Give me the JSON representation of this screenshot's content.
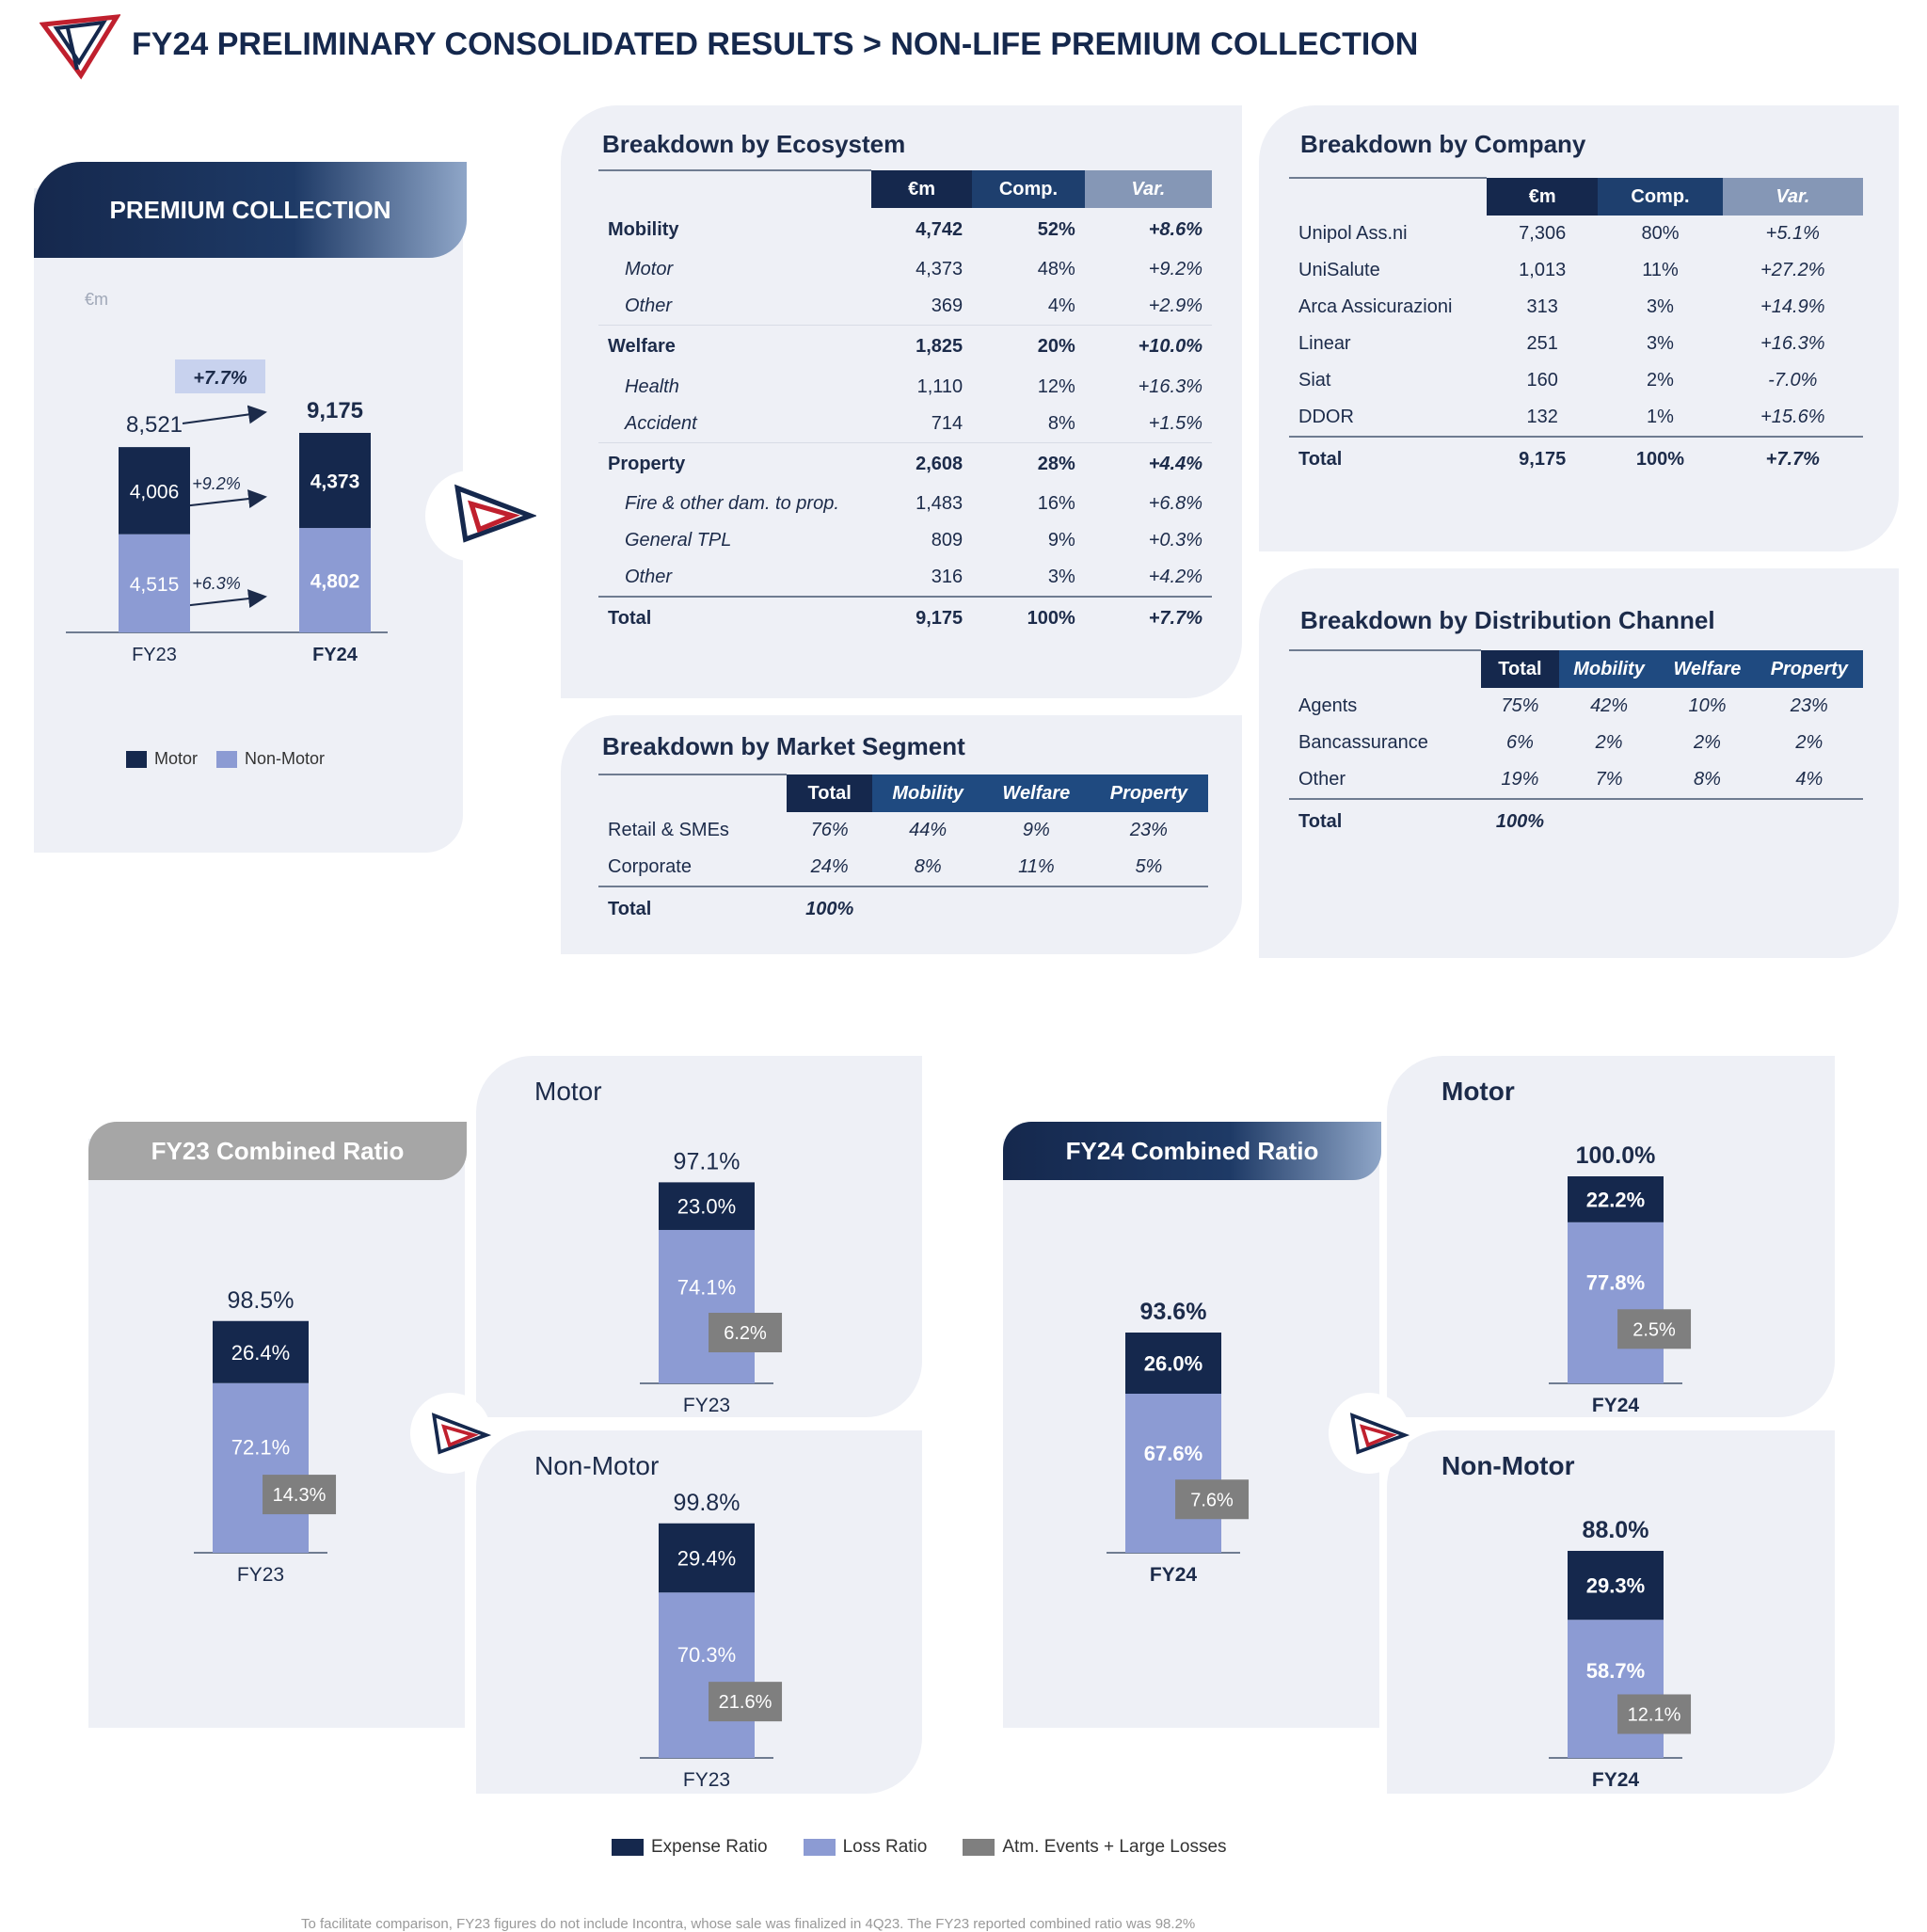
{
  "header": {
    "title": "FY24 PRELIMINARY CONSOLIDATED RESULTS > NON-LIFE PREMIUM COLLECTION"
  },
  "colors": {
    "navy": "#15284d",
    "lavender": "#8c9bd3",
    "grey": "#7f7f7f",
    "red": "#c0202e"
  },
  "premium": {
    "header": "PREMIUM COLLECTION",
    "unit": "€m",
    "legend": {
      "motor": "Motor",
      "nonmotor": "Non-Motor"
    },
    "total_growth": "+7.7%",
    "motor_growth": "+9.2%",
    "nonmotor_growth": "+6.3%"
  },
  "ecosystem": {
    "title": "Breakdown by Ecosystem",
    "headers": [
      "€m",
      "Comp.",
      "Var."
    ],
    "rows": [
      {
        "label": "Mobility",
        "em": "4,742",
        "comp": "52%",
        "var": "+8.6%",
        "type": "main"
      },
      {
        "label": "Motor",
        "em": "4,373",
        "comp": "48%",
        "var": "+9.2%",
        "type": "sub"
      },
      {
        "label": "Other",
        "em": "369",
        "comp": "4%",
        "var": "+2.9%",
        "type": "sub"
      },
      {
        "label": "Welfare",
        "em": "1,825",
        "comp": "20%",
        "var": "+10.0%",
        "type": "main"
      },
      {
        "label": "Health",
        "em": "1,110",
        "comp": "12%",
        "var": "+16.3%",
        "type": "sub"
      },
      {
        "label": "Accident",
        "em": "714",
        "comp": "8%",
        "var": "+1.5%",
        "type": "sub"
      },
      {
        "label": "Property",
        "em": "2,608",
        "comp": "28%",
        "var": "+4.4%",
        "type": "main"
      },
      {
        "label": "Fire & other dam. to prop.",
        "em": "1,483",
        "comp": "16%",
        "var": "+6.8%",
        "type": "sub"
      },
      {
        "label": "General TPL",
        "em": "809",
        "comp": "9%",
        "var": "+0.3%",
        "type": "sub"
      },
      {
        "label": "Other",
        "em": "316",
        "comp": "3%",
        "var": "+4.2%",
        "type": "sub"
      },
      {
        "label": "Total",
        "em": "9,175",
        "comp": "100%",
        "var": "+7.7%",
        "type": "total"
      }
    ]
  },
  "company": {
    "title": "Breakdown by Company",
    "headers": [
      "€m",
      "Comp.",
      "Var."
    ],
    "rows": [
      {
        "label": "Unipol Ass.ni",
        "em": "7,306",
        "comp": "80%",
        "var": "+5.1%"
      },
      {
        "label": "UniSalute",
        "em": "1,013",
        "comp": "11%",
        "var": "+27.2%"
      },
      {
        "label": "Arca Assicurazioni",
        "em": "313",
        "comp": "3%",
        "var": "+14.9%"
      },
      {
        "label": "Linear",
        "em": "251",
        "comp": "3%",
        "var": "+16.3%"
      },
      {
        "label": "Siat",
        "em": "160",
        "comp": "2%",
        "var": "-7.0%"
      },
      {
        "label": "DDOR",
        "em": "132",
        "comp": "1%",
        "var": "+15.6%"
      }
    ],
    "total": {
      "label": "Total",
      "em": "9,175",
      "comp": "100%",
      "var": "+7.7%"
    }
  },
  "market": {
    "title": "Breakdown by Market Segment",
    "headers": [
      "Total",
      "Mobility",
      "Welfare",
      "Property"
    ],
    "rows": [
      {
        "label": "Retail & SMEs",
        "total": "76%",
        "mobility": "44%",
        "welfare": "9%",
        "property": "23%"
      },
      {
        "label": "Corporate",
        "total": "24%",
        "mobility": "8%",
        "welfare": "11%",
        "property": "5%"
      }
    ],
    "total": {
      "label": "Total",
      "total": "100%"
    }
  },
  "distribution": {
    "title": "Breakdown by Distribution Channel",
    "headers": [
      "Total",
      "Mobility",
      "Welfare",
      "Property"
    ],
    "rows": [
      {
        "label": "Agents",
        "total": "75%",
        "mobility": "42%",
        "welfare": "10%",
        "property": "23%"
      },
      {
        "label": "Bancassurance",
        "total": "6%",
        "mobility": "2%",
        "welfare": "2%",
        "property": "2%"
      },
      {
        "label": "Other",
        "total": "19%",
        "mobility": "7%",
        "welfare": "8%",
        "property": "4%"
      }
    ],
    "total": {
      "label": "Total",
      "total": "100%"
    }
  },
  "combined": {
    "fy23_header": "FY23 Combined Ratio",
    "fy24_header": "FY24 Combined Ratio",
    "motor_label": "Motor",
    "nonmotor_label": "Non-Motor",
    "legend": {
      "expense": "Expense Ratio",
      "loss": "Loss Ratio",
      "atm": "Atm. Events + Large Losses"
    }
  },
  "footnote": "To facilitate comparison, FY23 figures do not include Incontra, whose sale was finalized in 4Q23. The FY23 reported combined ratio was 98.2%",
  "chart_data": [
    {
      "type": "bar",
      "stacked": true,
      "id": "premium",
      "categories": [
        "FY23",
        "FY24"
      ],
      "series": [
        {
          "name": "Motor",
          "values": [
            4006,
            4373
          ]
        },
        {
          "name": "Non-Motor",
          "values": [
            4515,
            4802
          ]
        }
      ],
      "totals": [
        8521,
        9175
      ],
      "value_labels": {
        "totals": [
          "8,521",
          "9,175"
        ],
        "Motor": [
          "4,006",
          "4,373"
        ],
        "Non-Motor": [
          "4,515",
          "4,802"
        ]
      },
      "ylabel": "€m",
      "legend": "bottom"
    },
    {
      "type": "bar",
      "stacked": true,
      "id": "cr-fy23-total",
      "categories": [
        "FY23"
      ],
      "total": "98.5%",
      "expense": 26.4,
      "loss": 72.1,
      "atm": 14.3,
      "labels": {
        "expense": "26.4%",
        "loss": "72.1%",
        "atm": "14.3%"
      }
    },
    {
      "type": "bar",
      "stacked": true,
      "id": "cr-fy23-motor",
      "categories": [
        "FY23"
      ],
      "total": "97.1%",
      "expense": 23.0,
      "loss": 74.1,
      "atm": 6.2,
      "labels": {
        "expense": "23.0%",
        "loss": "74.1%",
        "atm": "6.2%"
      }
    },
    {
      "type": "bar",
      "stacked": true,
      "id": "cr-fy23-nonmotor",
      "categories": [
        "FY23"
      ],
      "total": "99.8%",
      "expense": 29.4,
      "loss": 70.3,
      "atm": 21.6,
      "labels": {
        "expense": "29.4%",
        "loss": "70.3%",
        "atm": "21.6%"
      }
    },
    {
      "type": "bar",
      "stacked": true,
      "id": "cr-fy24-total",
      "categories": [
        "FY24"
      ],
      "total": "93.6%",
      "expense": 26.0,
      "loss": 67.6,
      "atm": 7.6,
      "labels": {
        "expense": "26.0%",
        "loss": "67.6%",
        "atm": "7.6%"
      }
    },
    {
      "type": "bar",
      "stacked": true,
      "id": "cr-fy24-motor",
      "categories": [
        "FY24"
      ],
      "total": "100.0%",
      "expense": 22.2,
      "loss": 77.8,
      "atm": 2.5,
      "labels": {
        "expense": "22.2%",
        "loss": "77.8%",
        "atm": "2.5%"
      }
    },
    {
      "type": "bar",
      "stacked": true,
      "id": "cr-fy24-nonmotor",
      "categories": [
        "FY24"
      ],
      "total": "88.0%",
      "expense": 29.3,
      "loss": 58.7,
      "atm": 12.1,
      "labels": {
        "expense": "29.3%",
        "loss": "58.7%",
        "atm": "12.1%"
      }
    }
  ]
}
